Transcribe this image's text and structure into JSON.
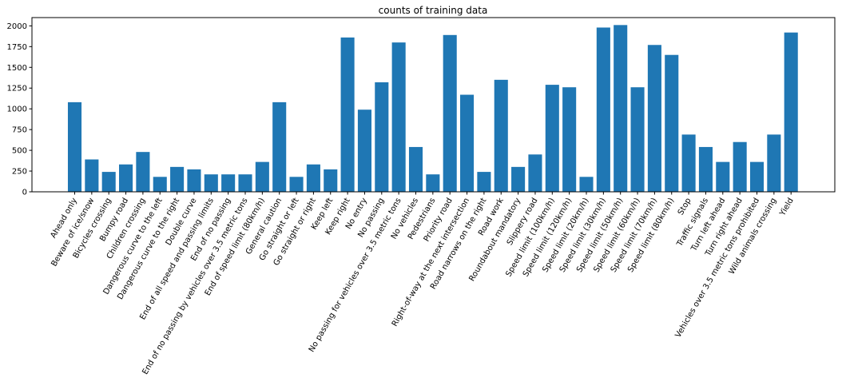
{
  "chart_data": {
    "type": "bar",
    "title": "counts of training data",
    "xlabel": "",
    "ylabel": "",
    "bar_color": "#1f77b4",
    "grid": false,
    "ylim": [
      0,
      2100
    ],
    "yticks": [
      0,
      250,
      500,
      750,
      1000,
      1250,
      1500,
      1750,
      2000
    ],
    "categories": [
      "Ahead only",
      "Beware of ice/snow",
      "Bicycles crossing",
      "Bumpy road",
      "Children crossing",
      "Dangerous curve to the left",
      "Dangerous curve to the right",
      "Double curve",
      "End of all speed and passing limits",
      "End of no passing",
      "End of no passing by vehicles over 3.5 metric tons",
      "End of speed limit (80km/h)",
      "General caution",
      "Go straight or left",
      "Go straight or right",
      "Keep left",
      "Keep right",
      "No entry",
      "No passing",
      "No passing for vehicles over 3.5 metric tons",
      "No vehicles",
      "Pedestrians",
      "Priority road",
      "Right-of-way at the next intersection",
      "Road narrows on the right",
      "Road work",
      "Roundabout mandatory",
      "Slippery road",
      "Speed limit (100km/h)",
      "Speed limit (120km/h)",
      "Speed limit (20km/h)",
      "Speed limit (30km/h)",
      "Speed limit (50km/h)",
      "Speed limit (60km/h)",
      "Speed limit (70km/h)",
      "Speed limit (80km/h)",
      "Stop",
      "Traffic signals",
      "Turn left ahead",
      "Turn right ahead",
      "Vehicles over 3.5 metric tons prohibited",
      "Wild animals crossing",
      "Yield"
    ],
    "values": [
      1080,
      390,
      240,
      330,
      480,
      180,
      300,
      270,
      210,
      210,
      210,
      360,
      1080,
      180,
      330,
      270,
      1860,
      990,
      1320,
      1800,
      540,
      210,
      1890,
      1170,
      240,
      1350,
      300,
      450,
      1290,
      1260,
      180,
      1980,
      2010,
      1260,
      1770,
      1650,
      690,
      540,
      360,
      600,
      360,
      690,
      1920
    ]
  }
}
